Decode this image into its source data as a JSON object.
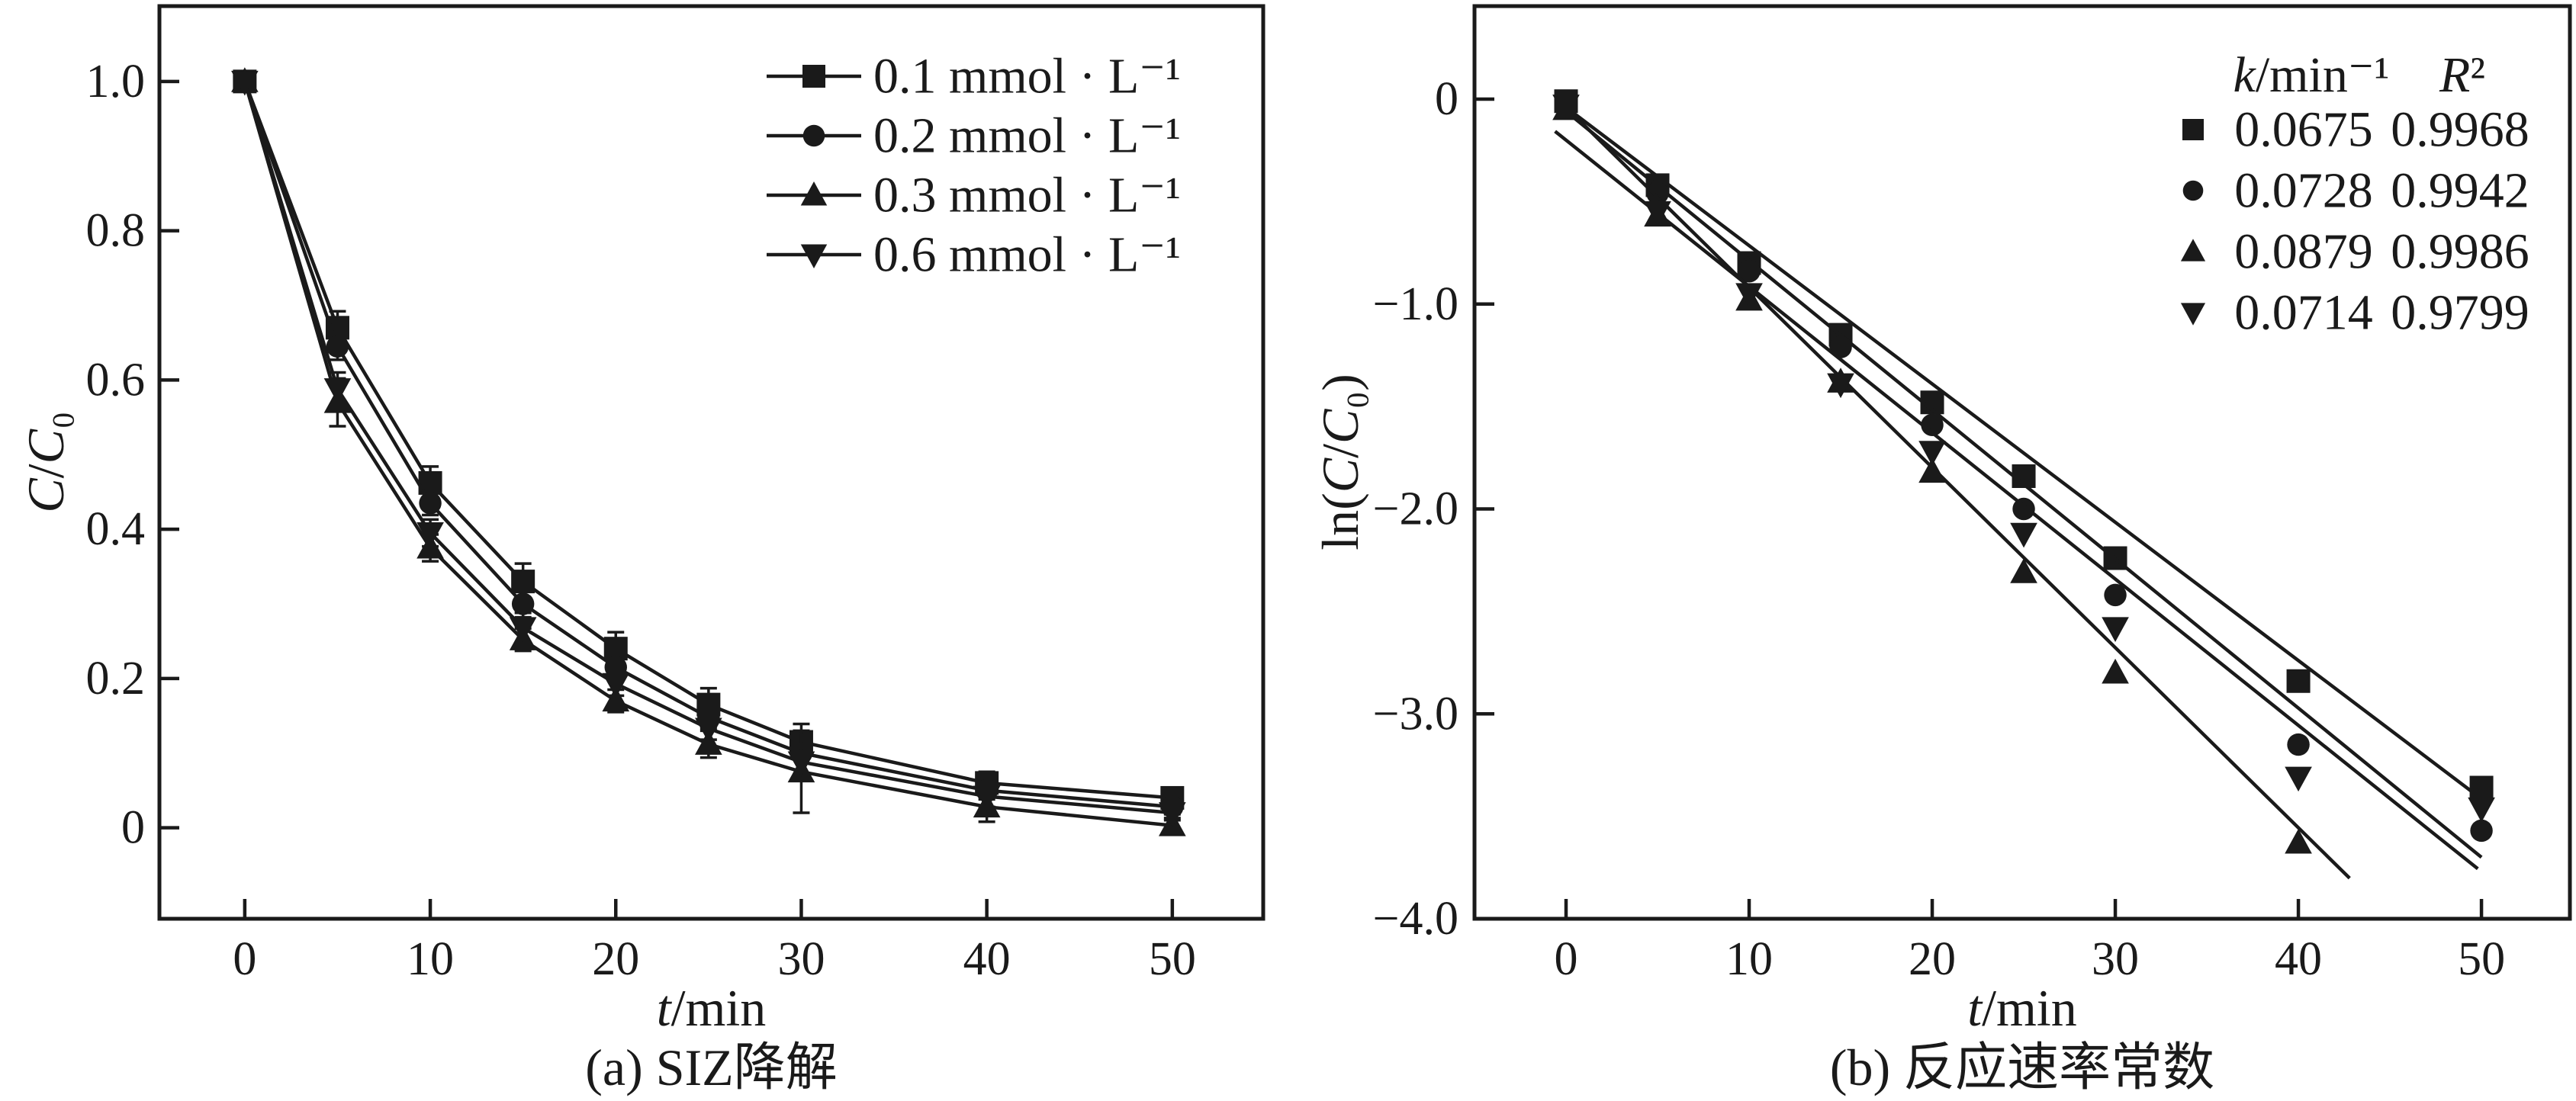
{
  "page": {
    "background": "#ffffff",
    "ink": "#1a1a1a"
  },
  "chart_data": [
    {
      "id": "a",
      "type": "line",
      "title": "(a) SIZ降解",
      "xlabel": "t/min",
      "ylabel": "C/C₀",
      "grid": false,
      "legend_position": "top-right-inside",
      "xlim": [
        -4.6,
        54.9
      ],
      "ylim": [
        -0.122,
        1.101
      ],
      "xticks": [
        0,
        10,
        20,
        30,
        40,
        50
      ],
      "xtick_labels": [
        "0",
        "10",
        "20",
        "30",
        "40",
        "50"
      ],
      "yticks": [
        0,
        0.2,
        0.4,
        0.6,
        0.8,
        1.0
      ],
      "ytick_labels": [
        "0",
        "0.2",
        "0.4",
        "0.6",
        "0.8",
        "1.0"
      ],
      "x": [
        0,
        5,
        10,
        15,
        20,
        25,
        30,
        40,
        50
      ],
      "series": [
        {
          "name": "0.1 mmol · L⁻¹",
          "marker": "square",
          "values": [
            1.0,
            0.67,
            0.462,
            0.33,
            0.24,
            0.165,
            0.115,
            0.06,
            0.04
          ],
          "err": [
            0.012,
            0.022,
            0.022,
            0.024,
            0.022,
            0.022,
            0.024,
            0.015,
            0.01
          ]
        },
        {
          "name": "0.2 mmol · L⁻¹",
          "marker": "circle",
          "values": [
            1.0,
            0.645,
            0.435,
            0.3,
            0.215,
            0.148,
            0.1,
            0.05,
            0.028
          ],
          "err": [
            0.012,
            0.018,
            0.016,
            0.018,
            0.015,
            0.015,
            0.028,
            0.012,
            0.01
          ]
        },
        {
          "name": "0.3 mmol · L⁻¹",
          "marker": "triangle-up",
          "values": [
            1.0,
            0.57,
            0.375,
            0.252,
            0.17,
            0.112,
            0.075,
            0.028,
            0.003
          ],
          "err": [
            0.012,
            0.032,
            0.018,
            0.015,
            0.015,
            0.018,
            0.055,
            0.02,
            0.01
          ]
        },
        {
          "name": "0.6 mmol · L⁻¹",
          "marker": "triangle-down",
          "values": [
            1.0,
            0.588,
            0.395,
            0.268,
            0.193,
            0.133,
            0.088,
            0.042,
            0.02
          ],
          "err": [
            0.012,
            0.022,
            0.018,
            0.02,
            0.016,
            0.015,
            0.018,
            0.014,
            0.01
          ]
        }
      ]
    },
    {
      "id": "b",
      "type": "scatter",
      "title": "(b) 反应速率常数",
      "xlabel": "t/min",
      "ylabel": "ln(C/C₀)",
      "grid": false,
      "legend_position": "top-right-inside",
      "xlim": [
        -5.0,
        54.83
      ],
      "ylim": [
        -4.0,
        0.454
      ],
      "xticks": [
        0,
        10,
        20,
        30,
        40,
        50
      ],
      "xtick_labels": [
        "0",
        "10",
        "20",
        "30",
        "40",
        "50"
      ],
      "yticks": [
        0,
        -1.0,
        -2.0,
        -3.0,
        -4.0
      ],
      "ytick_labels": [
        "0",
        "−1.0",
        "−2.0",
        "−3.0",
        "−4.0"
      ],
      "legend_table": {
        "headers": [
          "k/min⁻¹",
          "R²"
        ],
        "rows": [
          {
            "marker": "square",
            "k": "0.0675",
            "r2": "0.9968"
          },
          {
            "marker": "circle",
            "k": "0.0728",
            "r2": "0.9942"
          },
          {
            "marker": "triangle-up",
            "k": "0.0879",
            "r2": "0.9986"
          },
          {
            "marker": "triangle-down",
            "k": "0.0714",
            "r2": "0.9799"
          }
        ]
      },
      "x": [
        0,
        5,
        10,
        15,
        20,
        25,
        30,
        40,
        50
      ],
      "series": [
        {
          "name": "k=0.0675",
          "marker": "square",
          "values": [
            -0.01,
            -0.42,
            -0.8,
            -1.15,
            -1.48,
            -1.84,
            -2.24,
            -2.84,
            -3.36
          ],
          "fit": {
            "t0": 0.4,
            "y0": -0.067,
            "t1": 50.3,
            "y1": -3.435
          }
        },
        {
          "name": "k=0.0728",
          "marker": "circle",
          "values": [
            -0.03,
            -0.46,
            -0.84,
            -1.21,
            -1.59,
            -2.0,
            -2.42,
            -3.15,
            -3.57
          ],
          "fit": {
            "t0": 0.4,
            "y0": -0.089,
            "t1": 50.0,
            "y1": -3.7
          }
        },
        {
          "name": "k=0.0879",
          "marker": "triangle-up",
          "values": [
            -0.05,
            -0.57,
            -0.98,
            -1.38,
            -1.82,
            -2.31,
            -2.8,
            -3.63,
            null
          ],
          "fit": {
            "t0": 0.4,
            "y0": -0.075,
            "t1": 42.8,
            "y1": -3.802
          }
        },
        {
          "name": "k=0.0714",
          "marker": "triangle-down",
          "values": [
            -0.03,
            -0.55,
            -0.95,
            -1.39,
            -1.72,
            -2.12,
            -2.58,
            -3.31,
            -3.46
          ],
          "fit": {
            "t0": -0.6,
            "y0": -0.157,
            "t1": 49.8,
            "y1": -3.756
          }
        }
      ]
    }
  ]
}
